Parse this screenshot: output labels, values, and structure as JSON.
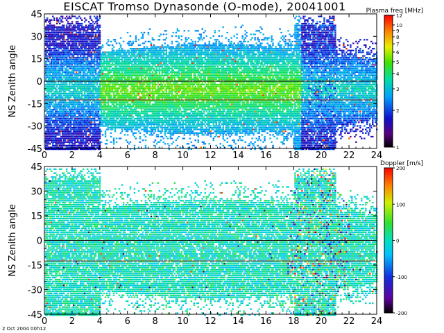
{
  "window": {
    "title": "EISCAT Tromso Dynasonde (O-mode),  20041001",
    "timestamp": "2 Oct 2004 00h12"
  },
  "chart_data": [
    {
      "type": "heatmap",
      "name": "plasma-frequency",
      "xlabel": "",
      "ylabel": "NS Zenith angle",
      "xlim": [
        0,
        24
      ],
      "ylim": [
        -45,
        45
      ],
      "x_ticks": [
        0,
        2,
        4,
        6,
        8,
        10,
        12,
        14,
        16,
        18,
        20,
        22,
        24
      ],
      "y_ticks": [
        45,
        30,
        15,
        0,
        -15,
        -30,
        -45
      ],
      "reference_lines": [
        {
          "y": 0,
          "color": "#000000"
        },
        {
          "y": -12.5,
          "color": "#c0392b"
        }
      ],
      "colorbar": {
        "label": "Plasma freq [MHz]",
        "scale": "log",
        "range": [
          1,
          12
        ],
        "ticks": [
          12,
          10,
          9,
          8,
          7,
          6,
          5,
          4,
          3,
          2,
          1
        ]
      },
      "grid": false
    },
    {
      "type": "heatmap",
      "name": "doppler",
      "xlabel": "",
      "ylabel": "NS Zenith angle",
      "xlim": [
        0,
        24
      ],
      "ylim": [
        -45,
        45
      ],
      "x_ticks": [
        0,
        2,
        4,
        6,
        8,
        10,
        12,
        14,
        16,
        18,
        20,
        22,
        24
      ],
      "y_ticks": [
        45,
        30,
        15,
        0,
        -15,
        -30,
        -45
      ],
      "reference_lines": [
        {
          "y": 0,
          "color": "#000000"
        },
        {
          "y": -12.5,
          "color": "#c0392b"
        }
      ],
      "colorbar": {
        "label": "Doppler [m/s]",
        "scale": "linear",
        "range": [
          -200,
          200
        ],
        "ticks": [
          200,
          100,
          0,
          -100,
          -200
        ]
      },
      "grid": false
    }
  ]
}
